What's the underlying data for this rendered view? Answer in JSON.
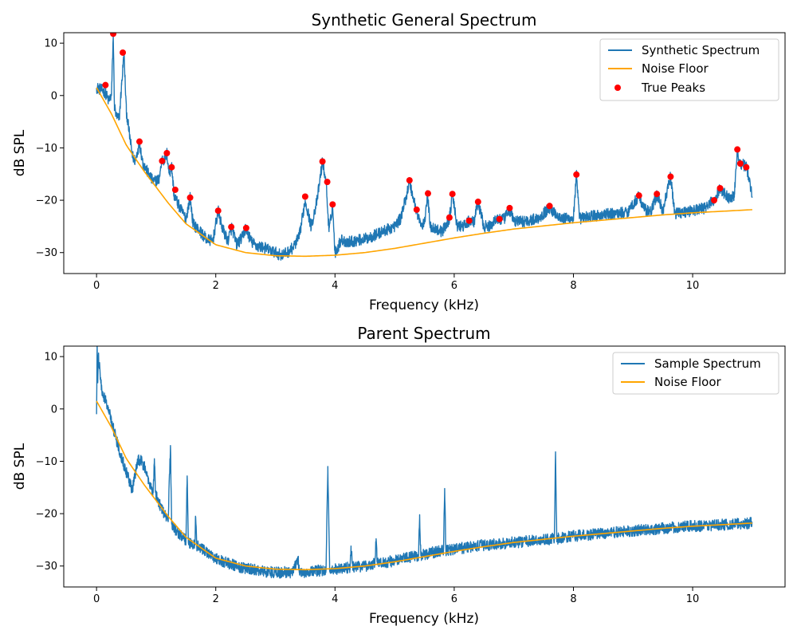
{
  "colors": {
    "spectrum": "#1f77b4",
    "noise_floor": "#ffa500",
    "peaks": "#ff0000"
  },
  "chart_data": [
    {
      "type": "line",
      "title": "Synthetic General Spectrum",
      "xlabel": "Frequency (kHz)",
      "ylabel": "dB SPL",
      "xlim": [
        -0.55,
        11.55
      ],
      "ylim": [
        -34,
        12
      ],
      "xticks": [
        0,
        2,
        4,
        6,
        8,
        10
      ],
      "yticks": [
        -30,
        -20,
        -10,
        0,
        10
      ],
      "xtick_labels": [
        "0",
        "2",
        "4",
        "6",
        "8",
        "10"
      ],
      "ytick_labels": [
        "−30",
        "−20",
        "−10",
        "0",
        "10"
      ],
      "grid": false,
      "legend_placement": "upper right",
      "legend": [
        "Synthetic Spectrum",
        "Noise Floor",
        "True Peaks"
      ],
      "noise_floor": {
        "name": "Noise Floor",
        "x": [
          0,
          0.25,
          0.5,
          0.8,
          1.0,
          1.2,
          1.5,
          2.0,
          2.5,
          3.0,
          3.5,
          4.0,
          4.5,
          5.0,
          5.5,
          6.0,
          6.5,
          7.0,
          7.5,
          8.0,
          8.5,
          9.0,
          9.5,
          10.0,
          10.5,
          11.0
        ],
        "y": [
          1.5,
          -3.5,
          -9.5,
          -14.5,
          -17.5,
          -20.5,
          -24.5,
          -28.5,
          -30,
          -30.6,
          -30.7,
          -30.5,
          -30,
          -29.2,
          -28.2,
          -27.2,
          -26.3,
          -25.5,
          -24.9,
          -24.3,
          -23.8,
          -23.3,
          -22.8,
          -22.4,
          -22.1,
          -21.8
        ]
      },
      "spectrum": {
        "name": "Synthetic Spectrum",
        "x": [
          0,
          0.1,
          0.15,
          0.2,
          0.25,
          0.28,
          0.3,
          0.33,
          0.38,
          0.42,
          0.46,
          0.5,
          0.6,
          0.65,
          0.72,
          0.78,
          0.85,
          0.95,
          1.05,
          1.1,
          1.14,
          1.18,
          1.22,
          1.26,
          1.3,
          1.4,
          1.5,
          1.57,
          1.62,
          1.7,
          1.85,
          1.95,
          2.04,
          2.1,
          2.2,
          2.27,
          2.35,
          2.45,
          2.5,
          2.6,
          2.7,
          2.8,
          2.9,
          3.0,
          3.1,
          3.2,
          3.3,
          3.4,
          3.5,
          3.6,
          3.7,
          3.79,
          3.85,
          3.9,
          3.96,
          4.0,
          4.05,
          4.1,
          4.2,
          4.3,
          4.4,
          4.5,
          4.6,
          4.7,
          4.8,
          4.9,
          5.0,
          5.1,
          5.2,
          5.25,
          5.3,
          5.37,
          5.45,
          5.5,
          5.55,
          5.6,
          5.7,
          5.8,
          5.92,
          5.97,
          6.05,
          6.15,
          6.25,
          6.33,
          6.4,
          6.5,
          6.6,
          6.7,
          6.77,
          6.85,
          6.93,
          7.0,
          7.2,
          7.4,
          7.6,
          7.8,
          8.0,
          8.05,
          8.1,
          8.3,
          8.5,
          8.7,
          8.9,
          9.1,
          9.2,
          9.3,
          9.4,
          9.5,
          9.63,
          9.7,
          9.8,
          10.0,
          10.2,
          10.36,
          10.46,
          10.6,
          10.7,
          10.75,
          10.8,
          10.9,
          10.95,
          11.0
        ],
        "y": [
          1.5,
          1.0,
          0.5,
          -1.0,
          0,
          11.5,
          -2.0,
          -4.0,
          -4.5,
          2.0,
          8.0,
          -3.0,
          -11.5,
          -12.5,
          -9.0,
          -13.0,
          -14.5,
          -16.5,
          -16.0,
          -12.0,
          -12.5,
          -11.0,
          -15.0,
          -13.5,
          -19.0,
          -21.5,
          -23.5,
          -19.5,
          -24.5,
          -25.5,
          -27.5,
          -27.8,
          -22.0,
          -25.0,
          -27.8,
          -25.2,
          -28.5,
          -27.0,
          -25.3,
          -28.0,
          -28.8,
          -29.0,
          -29.5,
          -30.0,
          -30.5,
          -30.0,
          -29.0,
          -27.0,
          -20.0,
          -25.0,
          -20.0,
          -12.5,
          -16.5,
          -26.0,
          -21.0,
          -30.0,
          -29.0,
          -27.5,
          -28.0,
          -27.8,
          -27.6,
          -27.4,
          -27.0,
          -26.5,
          -26.0,
          -25.5,
          -25.0,
          -23.5,
          -19.0,
          -16.3,
          -19.0,
          -22.0,
          -25.0,
          -24.5,
          -18.8,
          -25.0,
          -25.5,
          -26.0,
          -23.5,
          -19.0,
          -25.0,
          -25.0,
          -24.0,
          -24.2,
          -20.5,
          -25.0,
          -25.0,
          -23.5,
          -23.8,
          -23.5,
          -21.8,
          -24.0,
          -24.0,
          -23.5,
          -21.5,
          -23.5,
          -23.5,
          -15.2,
          -23.5,
          -23.0,
          -22.8,
          -22.5,
          -22.3,
          -19.2,
          -21.8,
          -22.2,
          -19.0,
          -22.0,
          -15.5,
          -22.5,
          -22.3,
          -22.0,
          -21.5,
          -20.0,
          -17.8,
          -19.5,
          -19.0,
          -10.5,
          -13.0,
          -13.5,
          -16.0,
          -19.5
        ]
      },
      "true_peaks": {
        "name": "True Peaks",
        "x": [
          0.15,
          0.28,
          0.44,
          0.72,
          1.1,
          1.18,
          1.26,
          1.32,
          1.57,
          2.04,
          2.26,
          2.51,
          3.5,
          3.79,
          3.87,
          3.96,
          5.25,
          5.37,
          5.56,
          5.92,
          5.97,
          6.25,
          6.4,
          6.76,
          6.93,
          7.6,
          8.05,
          9.1,
          9.4,
          9.63,
          10.36,
          10.46,
          10.75,
          10.8,
          10.9
        ],
        "y": [
          2.0,
          11.8,
          8.2,
          -8.8,
          -12.5,
          -11.0,
          -13.7,
          -18.0,
          -19.5,
          -22.0,
          -25.1,
          -25.3,
          -19.3,
          -12.6,
          -16.5,
          -20.8,
          -16.2,
          -21.8,
          -18.7,
          -23.3,
          -18.8,
          -23.9,
          -20.3,
          -23.6,
          -21.5,
          -21.1,
          -15.1,
          -19.1,
          -18.8,
          -15.5,
          -20.0,
          -17.7,
          -10.3,
          -13.0,
          -13.7
        ]
      }
    },
    {
      "type": "line",
      "title": "Parent Spectrum",
      "xlabel": "Frequency (kHz)",
      "ylabel": "dB SPL",
      "xlim": [
        -0.55,
        11.55
      ],
      "ylim": [
        -34,
        12
      ],
      "xticks": [
        0,
        2,
        4,
        6,
        8,
        10
      ],
      "yticks": [
        -30,
        -20,
        -10,
        0,
        10
      ],
      "xtick_labels": [
        "0",
        "2",
        "4",
        "6",
        "8",
        "10"
      ],
      "ytick_labels": [
        "−30",
        "−20",
        "−10",
        "0",
        "10"
      ],
      "grid": false,
      "legend_placement": "upper right",
      "legend": [
        "Sample Spectrum",
        "Noise Floor"
      ],
      "noise_floor": {
        "name": "Noise Floor",
        "x": [
          0,
          0.25,
          0.5,
          0.8,
          1.0,
          1.2,
          1.5,
          2.0,
          2.5,
          3.0,
          3.5,
          4.0,
          4.5,
          5.0,
          5.5,
          6.0,
          6.5,
          7.0,
          7.5,
          8.0,
          8.5,
          9.0,
          9.5,
          10.0,
          10.5,
          11.0
        ],
        "y": [
          1.5,
          -3.5,
          -9.5,
          -14.5,
          -17.5,
          -20.5,
          -24.5,
          -28.5,
          -30,
          -30.6,
          -30.7,
          -30.5,
          -30,
          -29.2,
          -28.2,
          -27.2,
          -26.3,
          -25.5,
          -24.9,
          -24.3,
          -23.8,
          -23.3,
          -22.8,
          -22.4,
          -22.1,
          -21.8
        ]
      },
      "spectrum": {
        "name": "Sample Spectrum",
        "x": [
          0,
          0.01,
          0.02,
          0.03,
          0.05,
          0.08,
          0.12,
          0.2,
          0.3,
          0.4,
          0.5,
          0.6,
          0.7,
          0.75,
          0.8,
          0.88,
          0.95,
          0.97,
          0.99,
          1.05,
          1.2,
          1.24,
          1.26,
          1.35,
          1.5,
          1.52,
          1.54,
          1.65,
          1.66,
          1.68,
          1.8,
          2.0,
          2.2,
          2.5,
          2.8,
          3.0,
          3.3,
          3.38,
          3.4,
          3.6,
          3.85,
          3.88,
          3.91,
          4.1,
          4.25,
          4.27,
          4.3,
          4.5,
          4.67,
          4.69,
          4.71,
          5.0,
          5.2,
          5.4,
          5.42,
          5.44,
          5.6,
          5.82,
          5.84,
          5.86,
          6.0,
          6.5,
          7.0,
          7.5,
          7.68,
          7.7,
          7.72,
          8.0,
          8.5,
          9.0,
          9.5,
          10.0,
          10.5,
          11.0
        ],
        "y": [
          -1.0,
          12.5,
          5.0,
          10.0,
          8.0,
          4.0,
          2.5,
          0.0,
          -4.5,
          -8.5,
          -12.0,
          -15.5,
          -9.5,
          -10.0,
          -11.0,
          -14.0,
          -16.0,
          -9.5,
          -16.0,
          -18.0,
          -21.5,
          -7.0,
          -22.0,
          -23.5,
          -25.0,
          -12.8,
          -25.5,
          -26.0,
          -20.5,
          -26.0,
          -27.0,
          -28.5,
          -29.5,
          -30.5,
          -31.0,
          -31.2,
          -31.2,
          -28.5,
          -31.2,
          -31.0,
          -30.8,
          -11.0,
          -30.8,
          -30.5,
          -30.2,
          -27.0,
          -30.2,
          -30.0,
          -29.5,
          -24.8,
          -29.5,
          -29.0,
          -28.5,
          -28.0,
          -20.2,
          -28.0,
          -27.5,
          -27.0,
          -15.2,
          -27.0,
          -26.8,
          -26.0,
          -25.5,
          -25.0,
          -24.8,
          -8.2,
          -24.8,
          -24.3,
          -23.8,
          -23.3,
          -22.8,
          -22.4,
          -22.1,
          -21.8
        ]
      }
    }
  ]
}
